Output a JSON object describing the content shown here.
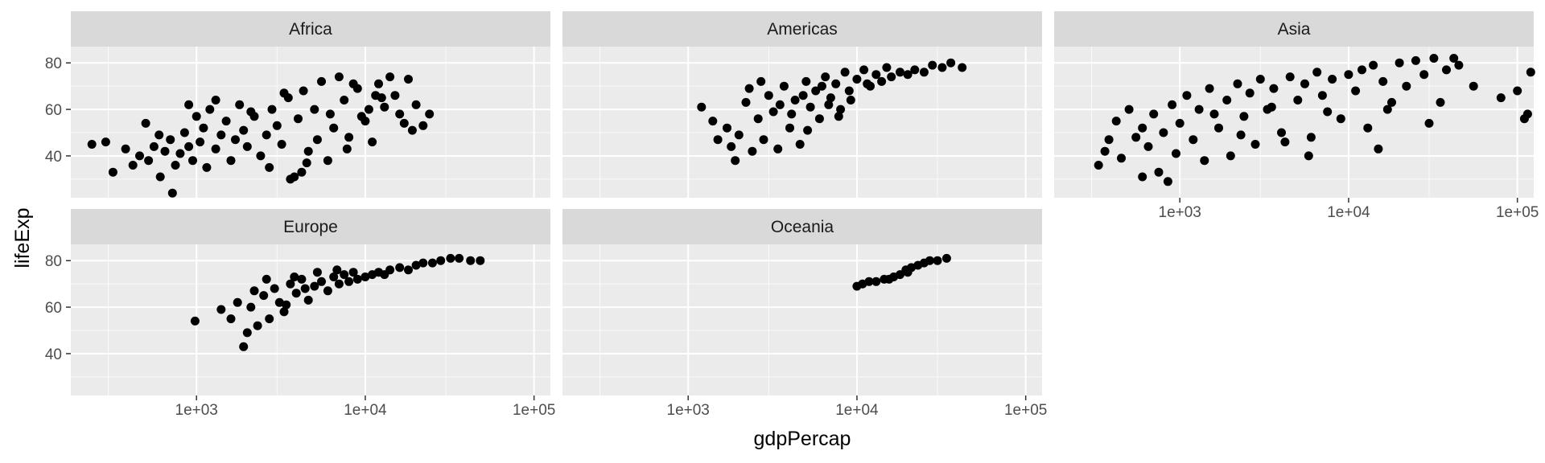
{
  "chart_data": {
    "type": "scatter",
    "facets": [
      "Africa",
      "Americas",
      "Asia",
      "Europe",
      "Oceania"
    ],
    "xlabel": "gdpPercap",
    "ylabel": "lifeExp",
    "x_scale": "log10",
    "xlim": [
      180,
      125000
    ],
    "ylim": [
      22,
      87
    ],
    "x_ticks": [
      1000,
      10000,
      100000
    ],
    "x_tick_labels": [
      "1e+03",
      "1e+04",
      "1e+05"
    ],
    "y_ticks": [
      40,
      60,
      80
    ],
    "y_tick_labels": [
      "40",
      "60",
      "80"
    ],
    "grid": true,
    "series": [
      {
        "facet": "Africa",
        "points": [
          [
            240,
            45
          ],
          [
            290,
            46
          ],
          [
            320,
            33
          ],
          [
            380,
            43
          ],
          [
            420,
            36
          ],
          [
            460,
            40
          ],
          [
            520,
            38
          ],
          [
            560,
            44
          ],
          [
            610,
            31
          ],
          [
            650,
            42
          ],
          [
            700,
            47
          ],
          [
            720,
            24
          ],
          [
            750,
            36
          ],
          [
            800,
            41
          ],
          [
            850,
            50
          ],
          [
            900,
            44
          ],
          [
            950,
            38
          ],
          [
            1000,
            57
          ],
          [
            1050,
            46
          ],
          [
            1100,
            52
          ],
          [
            1150,
            35
          ],
          [
            1200,
            60
          ],
          [
            1300,
            43
          ],
          [
            1400,
            49
          ],
          [
            1500,
            55
          ],
          [
            1600,
            38
          ],
          [
            1700,
            47
          ],
          [
            1800,
            62
          ],
          [
            1900,
            51
          ],
          [
            2000,
            44
          ],
          [
            2200,
            57
          ],
          [
            2400,
            40
          ],
          [
            2600,
            49
          ],
          [
            2800,
            60
          ],
          [
            3000,
            53
          ],
          [
            3200,
            45
          ],
          [
            3500,
            65
          ],
          [
            3800,
            31
          ],
          [
            4000,
            56
          ],
          [
            4300,
            68
          ],
          [
            4600,
            42
          ],
          [
            5000,
            60
          ],
          [
            5500,
            72
          ],
          [
            6000,
            38
          ],
          [
            6500,
            52
          ],
          [
            7000,
            74
          ],
          [
            7500,
            64
          ],
          [
            8000,
            48
          ],
          [
            9000,
            69
          ],
          [
            10000,
            55
          ],
          [
            11000,
            46
          ],
          [
            12000,
            71
          ],
          [
            13000,
            61
          ],
          [
            14000,
            74
          ],
          [
            15000,
            66
          ],
          [
            17000,
            54
          ],
          [
            18000,
            73
          ],
          [
            20000,
            62
          ],
          [
            22000,
            53
          ],
          [
            24000,
            58
          ],
          [
            500,
            54
          ],
          [
            600,
            49
          ],
          [
            900,
            62
          ],
          [
            1300,
            64
          ],
          [
            2100,
            59
          ],
          [
            2700,
            35
          ],
          [
            3300,
            67
          ],
          [
            4500,
            37
          ],
          [
            5200,
            47
          ],
          [
            7800,
            43
          ],
          [
            9500,
            57
          ],
          [
            11500,
            66
          ],
          [
            16000,
            58
          ],
          [
            19000,
            51
          ],
          [
            3600,
            30
          ],
          [
            4200,
            33
          ],
          [
            8500,
            71
          ],
          [
            12500,
            65
          ],
          [
            6200,
            58
          ],
          [
            10500,
            60
          ]
        ]
      },
      {
        "facet": "Americas",
        "points": [
          [
            1200,
            61
          ],
          [
            1400,
            55
          ],
          [
            1500,
            47
          ],
          [
            1700,
            52
          ],
          [
            1800,
            44
          ],
          [
            1900,
            38
          ],
          [
            2000,
            49
          ],
          [
            2200,
            63
          ],
          [
            2400,
            42
          ],
          [
            2600,
            56
          ],
          [
            2800,
            47
          ],
          [
            3000,
            66
          ],
          [
            3200,
            59
          ],
          [
            3400,
            43
          ],
          [
            3700,
            70
          ],
          [
            4000,
            52
          ],
          [
            4300,
            64
          ],
          [
            4600,
            45
          ],
          [
            5000,
            72
          ],
          [
            5300,
            61
          ],
          [
            5700,
            68
          ],
          [
            6000,
            56
          ],
          [
            6500,
            74
          ],
          [
            7000,
            65
          ],
          [
            7500,
            71
          ],
          [
            8000,
            60
          ],
          [
            8500,
            76
          ],
          [
            9000,
            68
          ],
          [
            10000,
            73
          ],
          [
            11000,
            77
          ],
          [
            12000,
            70
          ],
          [
            13000,
            75
          ],
          [
            14000,
            72
          ],
          [
            16000,
            74
          ],
          [
            18000,
            76
          ],
          [
            20000,
            75
          ],
          [
            22000,
            77
          ],
          [
            25000,
            76
          ],
          [
            28000,
            79
          ],
          [
            32000,
            78
          ],
          [
            36000,
            80
          ],
          [
            42000,
            78
          ],
          [
            2300,
            69
          ],
          [
            3500,
            62
          ],
          [
            4800,
            66
          ],
          [
            6200,
            70
          ],
          [
            7800,
            57
          ],
          [
            9200,
            64
          ],
          [
            5100,
            51
          ],
          [
            2700,
            72
          ],
          [
            15000,
            78
          ],
          [
            11500,
            71
          ],
          [
            4100,
            58
          ],
          [
            6800,
            62
          ]
        ]
      },
      {
        "facet": "Asia",
        "points": [
          [
            330,
            36
          ],
          [
            360,
            42
          ],
          [
            380,
            47
          ],
          [
            420,
            55
          ],
          [
            450,
            39
          ],
          [
            500,
            60
          ],
          [
            550,
            48
          ],
          [
            600,
            31
          ],
          [
            650,
            44
          ],
          [
            700,
            58
          ],
          [
            750,
            33
          ],
          [
            800,
            50
          ],
          [
            850,
            29
          ],
          [
            900,
            62
          ],
          [
            950,
            41
          ],
          [
            1000,
            54
          ],
          [
            1100,
            66
          ],
          [
            1200,
            47
          ],
          [
            1300,
            60
          ],
          [
            1400,
            38
          ],
          [
            1500,
            69
          ],
          [
            1700,
            52
          ],
          [
            1900,
            64
          ],
          [
            2000,
            40
          ],
          [
            2200,
            71
          ],
          [
            2400,
            57
          ],
          [
            2600,
            67
          ],
          [
            2800,
            45
          ],
          [
            3000,
            73
          ],
          [
            3300,
            60
          ],
          [
            3600,
            69
          ],
          [
            4000,
            50
          ],
          [
            4500,
            74
          ],
          [
            5000,
            64
          ],
          [
            5500,
            71
          ],
          [
            6000,
            48
          ],
          [
            6500,
            76
          ],
          [
            7000,
            66
          ],
          [
            8000,
            73
          ],
          [
            9000,
            56
          ],
          [
            10000,
            75
          ],
          [
            11000,
            68
          ],
          [
            12000,
            77
          ],
          [
            13000,
            52
          ],
          [
            14000,
            79
          ],
          [
            16000,
            72
          ],
          [
            18000,
            63
          ],
          [
            20000,
            80
          ],
          [
            22000,
            70
          ],
          [
            25000,
            81
          ],
          [
            28000,
            75
          ],
          [
            30000,
            54
          ],
          [
            32000,
            82
          ],
          [
            35000,
            63
          ],
          [
            38000,
            77
          ],
          [
            42000,
            82
          ],
          [
            45000,
            79
          ],
          [
            55000,
            70
          ],
          [
            80000,
            65
          ],
          [
            100000,
            68
          ],
          [
            110000,
            56
          ],
          [
            115000,
            58
          ],
          [
            120000,
            76
          ],
          [
            600,
            52
          ],
          [
            1600,
            58
          ],
          [
            2300,
            49
          ],
          [
            3500,
            61
          ],
          [
            4200,
            46
          ],
          [
            5800,
            40
          ],
          [
            7500,
            59
          ],
          [
            15000,
            43
          ],
          [
            17000,
            60
          ]
        ]
      },
      {
        "facet": "Europe",
        "points": [
          [
            980,
            54
          ],
          [
            1400,
            59
          ],
          [
            1600,
            55
          ],
          [
            1750,
            62
          ],
          [
            1900,
            43
          ],
          [
            2000,
            49
          ],
          [
            2100,
            60
          ],
          [
            2300,
            52
          ],
          [
            2500,
            65
          ],
          [
            2700,
            55
          ],
          [
            2900,
            68
          ],
          [
            3100,
            62
          ],
          [
            3300,
            58
          ],
          [
            3600,
            70
          ],
          [
            3900,
            66
          ],
          [
            4200,
            72
          ],
          [
            4600,
            63
          ],
          [
            5000,
            69
          ],
          [
            5500,
            71
          ],
          [
            6000,
            67
          ],
          [
            6500,
            73
          ],
          [
            7000,
            70
          ],
          [
            7500,
            74
          ],
          [
            8000,
            71
          ],
          [
            9000,
            72
          ],
          [
            10000,
            73
          ],
          [
            11000,
            74
          ],
          [
            12000,
            75
          ],
          [
            13000,
            74
          ],
          [
            14000,
            76
          ],
          [
            16000,
            77
          ],
          [
            18000,
            76
          ],
          [
            20000,
            78
          ],
          [
            22000,
            79
          ],
          [
            25000,
            79
          ],
          [
            28000,
            80
          ],
          [
            32000,
            81
          ],
          [
            36000,
            81
          ],
          [
            42000,
            80
          ],
          [
            48000,
            80
          ],
          [
            2600,
            72
          ],
          [
            3800,
            73
          ],
          [
            5200,
            75
          ],
          [
            6800,
            76
          ],
          [
            8500,
            75
          ],
          [
            4400,
            68
          ],
          [
            3400,
            61
          ],
          [
            2200,
            67
          ]
        ]
      },
      {
        "facet": "Oceania",
        "points": [
          [
            10000,
            69
          ],
          [
            10800,
            70
          ],
          [
            11800,
            71
          ],
          [
            13000,
            71
          ],
          [
            14500,
            72
          ],
          [
            16500,
            73
          ],
          [
            18000,
            74
          ],
          [
            19500,
            76
          ],
          [
            21000,
            77
          ],
          [
            23000,
            78
          ],
          [
            25000,
            79
          ],
          [
            27000,
            80
          ],
          [
            30000,
            80
          ],
          [
            34000,
            81
          ],
          [
            20000,
            75
          ],
          [
            15500,
            72
          ]
        ]
      }
    ]
  }
}
